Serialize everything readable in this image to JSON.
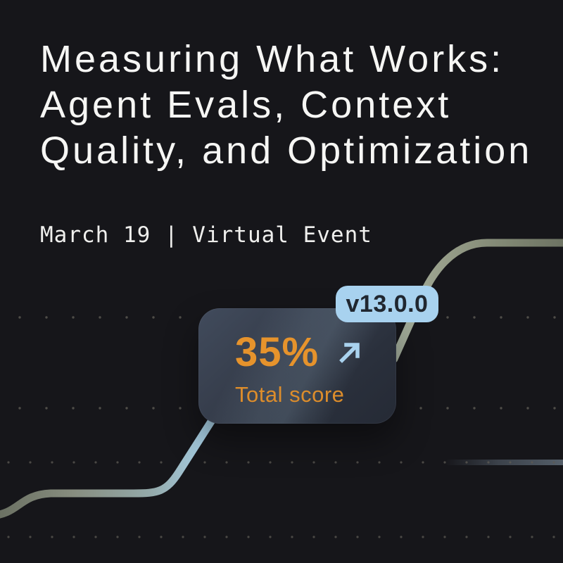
{
  "event": {
    "title_lines": [
      "Measuring What Works:",
      "Agent Evals, Context",
      "Quality, and Optimization"
    ],
    "date_line": "March 19 | Virtual Event"
  },
  "scorecard": {
    "value": "35%",
    "label": "Total score",
    "trend_icon": "arrow-up-right"
  },
  "version_badge": {
    "label": "v13.0.0"
  },
  "colors": {
    "background": "#16161a",
    "title_text": "#f6f6f4",
    "subtitle_text": "#efefed",
    "score_value_orange": "#e6932c",
    "score_label_orange": "#dd8d2b",
    "badge_background": "#a8d2ef",
    "badge_text": "#202730",
    "arrow_blue": "#a9d2ee",
    "line_olive": "#868c7e",
    "line_blue": "#a6cde2",
    "card_slate_light": "#414b5c",
    "card_slate_dark": "#252a35",
    "dot_gray": "#5e5b54"
  }
}
